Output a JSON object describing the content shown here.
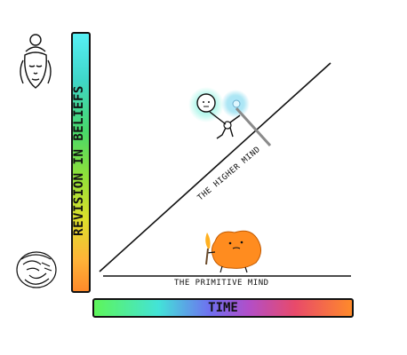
{
  "axes": {
    "y_label": "REVISION IN BELIEFS",
    "x_label": "TIME"
  },
  "lines": {
    "higher_label": "THE HIGHER MIND",
    "primitive_label": "THE PRIMITIVE MIND"
  },
  "icons": {
    "top": "buddha-head-icon",
    "bottom": "rage-face-icon",
    "stick_figure": "stick-figure-icon",
    "blob": "orange-blob-icon"
  },
  "colors": {
    "blob": "#ff8c1f",
    "glow": "#7ff0e0",
    "torch_flame": "#ffb020"
  }
}
